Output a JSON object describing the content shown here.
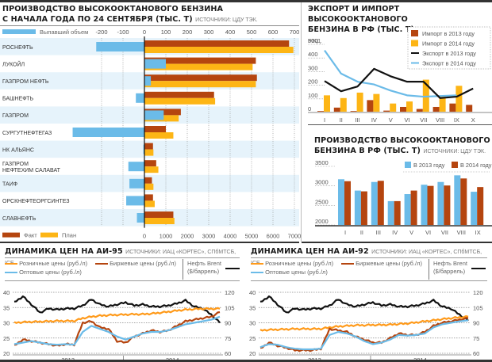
{
  "colors": {
    "fact": "#b5450f",
    "plan": "#fdb515",
    "excess": "#6bbbe8",
    "import2013": "#b5450f",
    "import2014": "#fdb515",
    "export2013": "#111111",
    "export2014": "#6bbbe8",
    "prod2013": "#6bbbe8",
    "prod2014": "#b5450f",
    "retail": "#ff9a1a",
    "exchange": "#b5450f",
    "wholesale": "#6bbbe8",
    "brent": "#111111",
    "stripe": "#e6f3fb"
  },
  "chart_data": [
    {
      "id": "production_by_company",
      "type": "bar",
      "title": "ПРОИЗВОДСТВО ВЫСОКООКТАНОВОГО БЕНЗИНА",
      "title_line2": "С НАЧАЛА ГОДА ПО 24 СЕНТЯБРЯ (ТЫС. Т)",
      "source": "ИСТОЧНИКИ: ЦДУ ТЭК.",
      "orientation": "horizontal",
      "categories": [
        "РОСНЕФТЬ",
        "ЛУКОЙЛ",
        "ГАЗПРОМ НЕФТЬ",
        "БАШНЕФТЬ",
        "ГАЗПРОМ",
        "СУРГУТНЕФТЕГАЗ",
        "НК АЛЬЯНС",
        "ГАЗПРОМ\nНЕФТЕХИМ САЛАВАТ",
        "ТАИФ",
        "ОРСКНЕФТЕОРГСИНТЕЗ",
        "СЛАВНЕФТЬ"
      ],
      "series": [
        {
          "name": "Выпавший объем",
          "axis": "top",
          "values": [
            -225,
            100,
            30,
            -40,
            90,
            -335,
            -5,
            -75,
            -70,
            -85,
            -35
          ]
        },
        {
          "name": "Факт",
          "axis": "bottom",
          "values": [
            6750,
            5200,
            5250,
            3250,
            1700,
            1000,
            400,
            550,
            350,
            400,
            1350
          ]
        },
        {
          "name": "План",
          "axis": "bottom",
          "values": [
            6950,
            5050,
            5200,
            3300,
            1600,
            1350,
            420,
            650,
            420,
            480,
            1400
          ]
        }
      ],
      "top_axis": {
        "ticks": [
          "-200",
          "-100",
          "0",
          "100",
          "200",
          "300",
          "400",
          "500",
          "600",
          "700"
        ],
        "range": [
          -225,
          725
        ]
      },
      "bottom_axis": {
        "ticks": [
          "0",
          "1000",
          "2000",
          "3000",
          "4000",
          "5000",
          "6000",
          "7000"
        ],
        "range": [
          -2250,
          7250
        ]
      },
      "legend": {
        "excess": "Выпавший объем",
        "fact": "Факт",
        "plan": "План"
      }
    },
    {
      "id": "export_import",
      "type": "bar+line",
      "title": "ЭКСПОРТ И ИМПОРТ ВЫСОКООКТАНОВОГО",
      "title_line2": "БЕНЗИНА В РФ (ТЫС. Т)",
      "source": "ИСТОЧНИКИ: ЦДУ ТЭК, РЖД.",
      "categories": [
        "I",
        "II",
        "III",
        "IV",
        "V",
        "VI",
        "VII",
        "VIII",
        "IX",
        "X"
      ],
      "yticks": [
        "0",
        "100",
        "200",
        "300",
        "400",
        "500"
      ],
      "ylim": [
        0,
        500
      ],
      "series": [
        {
          "name": "Импорт в 2013 году",
          "kind": "bar",
          "values": [
            5,
            30,
            5,
            85,
            8,
            35,
            20,
            35,
            60,
            50
          ]
        },
        {
          "name": "Импорт в 2014 году",
          "kind": "bar",
          "values": [
            120,
            100,
            140,
            130,
            60,
            75,
            235,
            110,
            190,
            null
          ]
        },
        {
          "name": "Экспорт в 2013 году",
          "kind": "line",
          "values": [
            225,
            150,
            185,
            315,
            260,
            220,
            220,
            100,
            110,
            170
          ]
        },
        {
          "name": "Экспорт в 2014 году",
          "kind": "line",
          "values": [
            450,
            280,
            220,
            200,
            155,
            120,
            110,
            115,
            120,
            null
          ]
        }
      ]
    },
    {
      "id": "production_by_month",
      "type": "bar",
      "title": "ПРОИЗВОДСТВО ВЫСОКООКТАНОВОГО",
      "title_line2": "БЕНЗИНА В РФ (ТЫС. Т)",
      "source": "ИСТОЧНИКИ: ЦДУ ТЭК.",
      "categories": [
        "I",
        "II",
        "III",
        "IV",
        "V",
        "VI",
        "VII",
        "VIII",
        "IX"
      ],
      "yticks": [
        "2000",
        "2500",
        "3000",
        "3500"
      ],
      "ylim": [
        2000,
        3500
      ],
      "series": [
        {
          "name": "В 2013 году",
          "values": [
            3170,
            2880,
            3100,
            2610,
            2790,
            3030,
            3100,
            3270,
            2850
          ]
        },
        {
          "name": "В 2014 году",
          "values": [
            3120,
            2860,
            3130,
            2610,
            2880,
            3000,
            3010,
            3190,
            2970
          ]
        }
      ]
    },
    {
      "id": "prices_ai95",
      "type": "line",
      "title": "ДИНАМИКА ЦЕН НА АИ-95",
      "source": "ИСТОЧНИКИ: ИАЦ «КОРТЕС», СПбМТСБ, ICE.",
      "x_labels": [
        "2013",
        "2014"
      ],
      "left_axis": {
        "ticks": [
          "20",
          "25",
          "30",
          "35",
          "40"
        ],
        "range": [
          20,
          40
        ]
      },
      "right_axis": {
        "ticks": [
          "60",
          "75",
          "90",
          "105",
          "120"
        ],
        "range": [
          60,
          120
        ]
      },
      "series": [
        {
          "name": "Розничные цены (руб./л)",
          "axis": "left",
          "values": [
            30,
            30.2,
            30.3,
            30.4,
            30.5,
            30.6,
            30.6,
            30.6,
            31.5,
            32.0,
            32.3,
            32.5,
            32.6,
            32.7,
            32.8,
            32.8,
            33.0,
            33.3,
            33.6,
            34.0,
            34.3,
            34.5,
            34.6,
            34.6,
            34.6
          ]
        },
        {
          "name": "Биржевые цены (руб./л)",
          "axis": "left",
          "values": [
            22.5,
            24.5,
            24.0,
            23.5,
            23.0,
            22.5,
            23.0,
            22.8,
            30.0,
            30.5,
            28.5,
            28.0,
            24.0,
            23.5,
            25.5,
            26.5,
            27.5,
            27.0,
            27.5,
            29.0,
            30.5,
            31.0,
            31.5,
            32.0,
            33.5
          ]
        },
        {
          "name": "Оптовые цены (руб./л)",
          "axis": "left",
          "values": [
            23.0,
            23.5,
            24.0,
            23.5,
            23.0,
            22.8,
            23.0,
            22.8,
            27.0,
            29.0,
            28.0,
            27.0,
            25.5,
            24.5,
            25.5,
            26.5,
            27.0,
            27.0,
            27.5,
            28.5,
            29.5,
            30.0,
            30.5,
            31.0,
            32.0
          ]
        },
        {
          "name": "Нефть Brent ($/баррель)",
          "axis": "right",
          "values": [
            110,
            116,
            108,
            100,
            104,
            103,
            104,
            104,
            107,
            113,
            108,
            106,
            108,
            110,
            107,
            108,
            106,
            106,
            107,
            109,
            112,
            106,
            104,
            98,
            90
          ]
        }
      ],
      "legend": {
        "retail": "Розничные цены (руб./л)",
        "exchange": "Биржевые цены (руб./л)",
        "wholesale": "Оптовые цены (руб./л)",
        "brent_line1": "Нефть Brent",
        "brent_line2": "($/баррель)"
      }
    },
    {
      "id": "prices_ai92",
      "type": "line",
      "title": "ДИНАМИКА ЦЕН НА АИ-92",
      "source": "ИСТОЧНИКИ: ИАЦ «КОРТЕС», СПбМТСБ, ICE.",
      "x_labels": [
        "2013",
        "2014"
      ],
      "left_axis": {
        "ticks": [
          "20",
          "25",
          "30",
          "35",
          "40"
        ],
        "range": [
          20,
          40
        ]
      },
      "right_axis": {
        "ticks": [
          "60",
          "75",
          "90",
          "105",
          "120"
        ],
        "range": [
          60,
          120
        ]
      },
      "series": [
        {
          "name": "Розничные цены (руб./л)",
          "axis": "left",
          "values": [
            27.5,
            27.7,
            27.8,
            27.9,
            28.0,
            28.0,
            28.0,
            28.0,
            28.5,
            28.8,
            29.0,
            29.2,
            29.2,
            29.3,
            29.3,
            29.4,
            29.6,
            29.8,
            30.1,
            30.5,
            30.8,
            31.2,
            31.5,
            31.8,
            32.0
          ]
        },
        {
          "name": "Биржевые цены (руб./л)",
          "axis": "left",
          "values": [
            21.5,
            23.5,
            22.5,
            21.8,
            21.0,
            21.0,
            21.0,
            21.5,
            28.0,
            27.5,
            27.0,
            25.5,
            24.5,
            23.5,
            23.5,
            25.0,
            26.5,
            26.0,
            26.0,
            27.0,
            29.0,
            30.0,
            30.5,
            31.0,
            31.5
          ]
        },
        {
          "name": "Оптовые цены (руб./л)",
          "axis": "left",
          "values": [
            22.0,
            23.0,
            22.8,
            22.0,
            21.5,
            21.3,
            21.3,
            21.5,
            26.0,
            27.0,
            26.5,
            25.5,
            24.0,
            23.0,
            23.5,
            24.5,
            26.0,
            25.8,
            26.0,
            26.5,
            28.5,
            29.5,
            30.0,
            30.5,
            30.8
          ]
        },
        {
          "name": "Нефть Brent ($/баррель)",
          "axis": "right",
          "values": [
            110,
            116,
            108,
            100,
            104,
            103,
            104,
            104,
            107,
            113,
            108,
            106,
            108,
            110,
            107,
            108,
            106,
            106,
            107,
            109,
            112,
            106,
            104,
            98,
            92
          ]
        }
      ],
      "legend": {
        "retail": "Розничные цены (руб./л)",
        "exchange": "Биржевые цены (руб./л)",
        "wholesale": "Оптовые цены (руб./л)",
        "brent_line1": "Нефть Brent",
        "brent_line2": "($/баррель)"
      }
    }
  ]
}
